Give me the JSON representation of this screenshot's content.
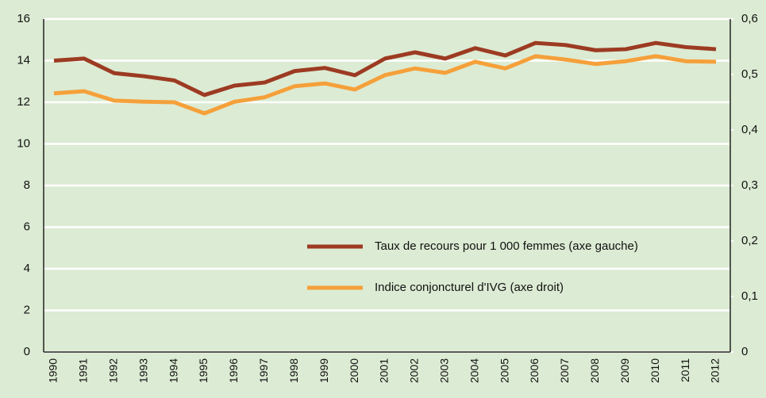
{
  "chart_data": {
    "type": "line",
    "categories": [
      "1990",
      "1991",
      "1992",
      "1993",
      "1994",
      "1995",
      "1996",
      "1997",
      "1998",
      "1999",
      "2000",
      "2001",
      "2002",
      "2003",
      "2004",
      "2005",
      "2006",
      "2007",
      "2008",
      "2009",
      "2010",
      "2011",
      "2012"
    ],
    "series": [
      {
        "name": "Taux de recours pour 1 000 femmes (axe gauche)",
        "color": "#9c3b22",
        "axis": "y",
        "values": [
          14.0,
          14.1,
          13.4,
          13.25,
          13.05,
          12.35,
          12.8,
          12.95,
          13.5,
          13.65,
          13.3,
          14.1,
          14.4,
          14.1,
          14.6,
          14.25,
          14.85,
          14.75,
          14.5,
          14.55,
          14.85,
          14.65,
          14.55
        ]
      },
      {
        "name": "Indice conjoncturel d'IVG (axe droit)",
        "color": "#f5a03a",
        "axis": "y2",
        "values": [
          0.466,
          0.47,
          0.453,
          0.451,
          0.45,
          0.43,
          0.451,
          0.459,
          0.479,
          0.484,
          0.473,
          0.499,
          0.511,
          0.503,
          0.523,
          0.511,
          0.533,
          0.527,
          0.519,
          0.524,
          0.533,
          0.524,
          0.523
        ]
      }
    ],
    "ylim": [
      0,
      16
    ],
    "yticks": [
      0,
      2,
      4,
      6,
      8,
      10,
      12,
      14,
      16
    ],
    "y2lim": [
      0,
      0.6
    ],
    "y2ticks": [
      0,
      {
        "value": 0.1,
        "label": "0,1"
      },
      {
        "value": 0.2,
        "label": "0,2"
      },
      {
        "value": 0.3,
        "label": "0,3"
      },
      {
        "value": 0.4,
        "label": "0,4"
      },
      {
        "value": 0.5,
        "label": "0,5"
      },
      {
        "value": 0.6,
        "label": "0,6"
      }
    ],
    "grid": true
  }
}
